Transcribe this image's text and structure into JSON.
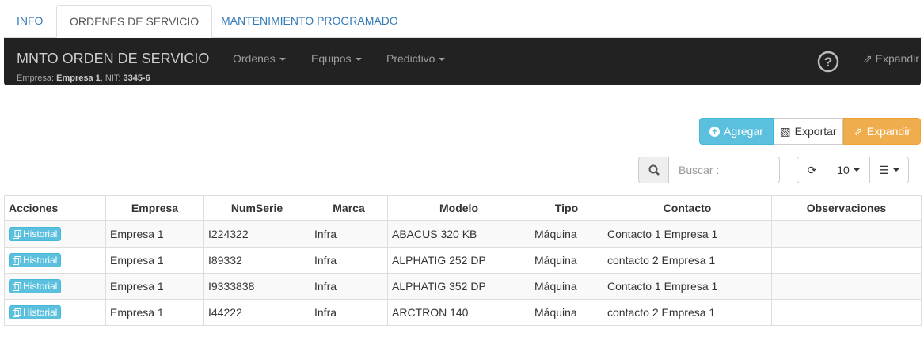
{
  "tabs": [
    "INFO",
    "ORDENES DE SERVICIO",
    "MANTENIMIENTO PROGRAMADO"
  ],
  "navbar": {
    "brand": "MNTO ORDEN DE SERVICIO",
    "menus": [
      "Ordenes",
      "Equipos",
      "Predictivo"
    ],
    "expand": "Expandir",
    "company_label": "Empresa:",
    "company": "Empresa 1",
    "nit_label": ", NIT:",
    "nit": "3345-6"
  },
  "toolbar": {
    "add": "Agregar",
    "export": "Exportar",
    "expand": "Expandir",
    "search_placeholder": "Buscar :",
    "page_size": "10"
  },
  "table": {
    "headers": [
      "Acciones",
      "Empresa",
      "NumSerie",
      "Marca",
      "Modelo",
      "Tipo",
      "Contacto",
      "Observaciones"
    ],
    "rows": [
      [
        "Historial",
        "Empresa 1",
        "I224322",
        "Infra",
        "ABACUS 320 KB",
        "Máquina",
        "Contacto 1 Empresa 1",
        ""
      ],
      [
        "Historial",
        "Empresa 1",
        "I89332",
        "Infra",
        "ALPHATIG 252 DP",
        "Máquina",
        "contacto 2 Empresa 1",
        ""
      ],
      [
        "Historial",
        "Empresa 1",
        "I9333838",
        "Infra",
        "ALPHATIG 352 DP",
        "Máquina",
        "Contacto 1 Empresa 1",
        ""
      ],
      [
        "Historial",
        "Empresa 1",
        "I44222",
        "Infra",
        "ARCTRON 140",
        "Máquina",
        "contacto 2 Empresa 1",
        ""
      ]
    ]
  }
}
